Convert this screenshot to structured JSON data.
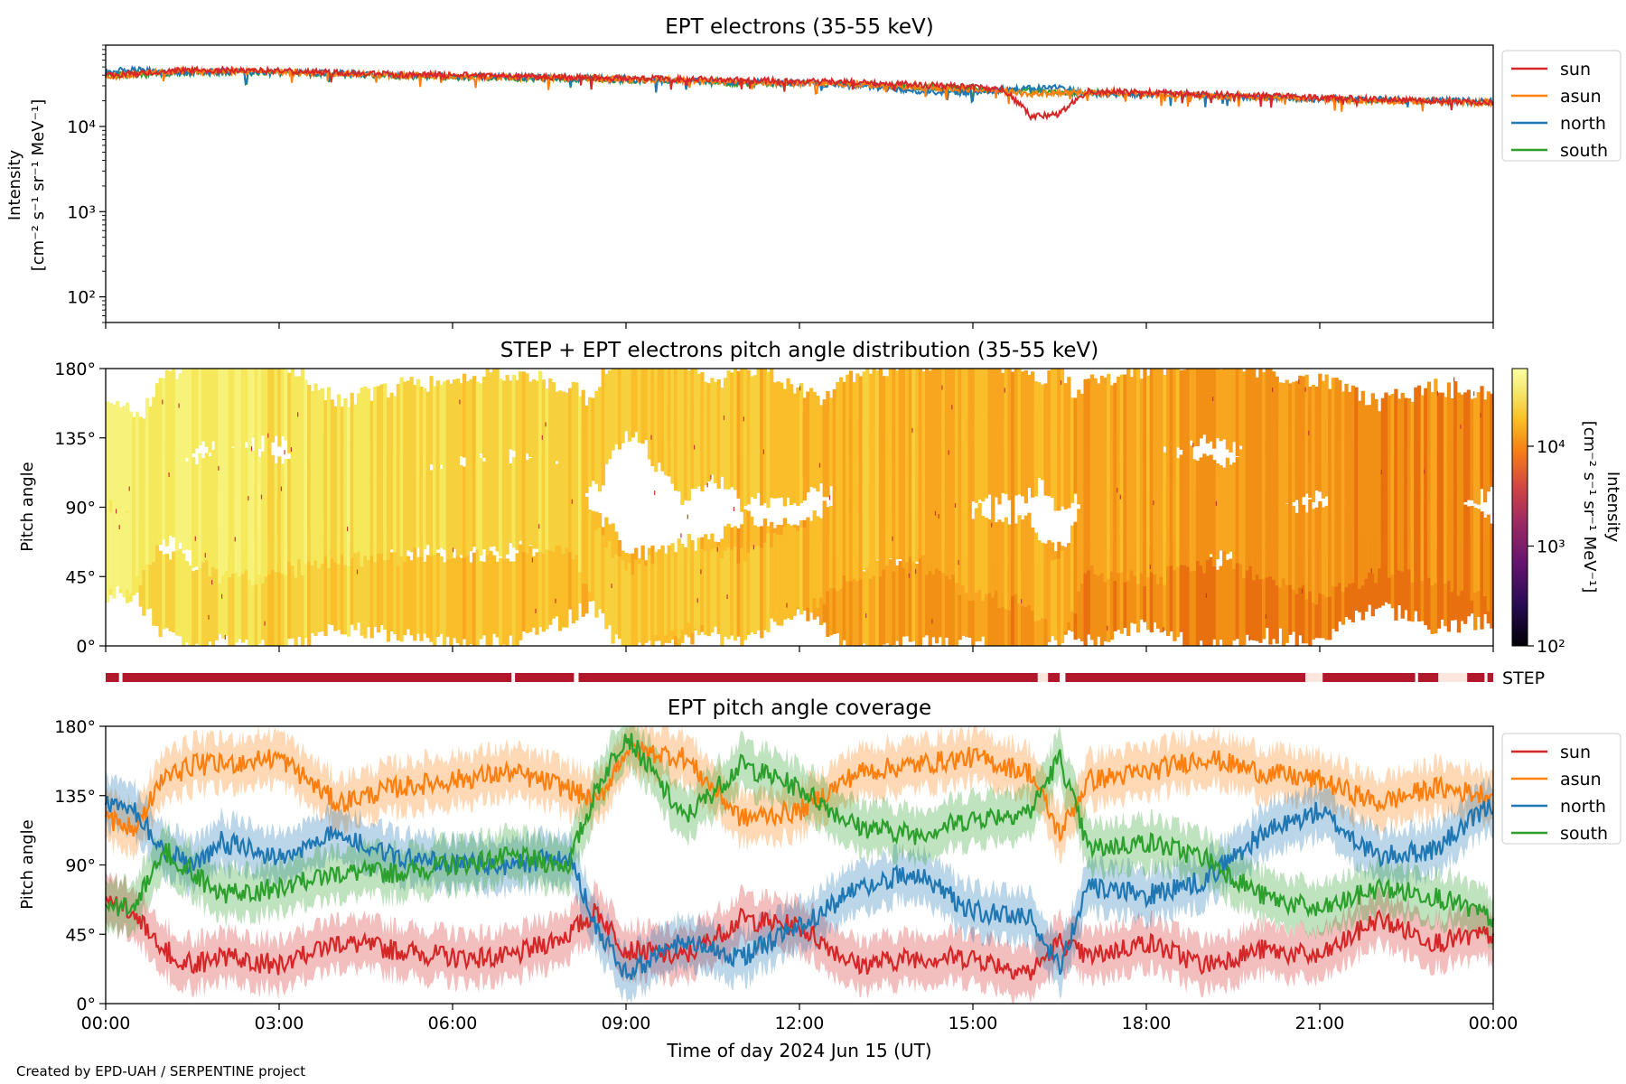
{
  "credit": "Created by EPD-UAH / SERPENTINE project",
  "colors": {
    "sun": "#d62728",
    "asun": "#ff7f0e",
    "north": "#1f77b4",
    "south": "#2ca02c",
    "step_bar": "#b2182b",
    "step_gap": "#fbe7dd"
  },
  "x_axis": {
    "label": "Time of day 2024 Jun 15 (UT)",
    "ticks": [
      {
        "h": 0,
        "label": "00:00"
      },
      {
        "h": 3,
        "label": "03:00"
      },
      {
        "h": 6,
        "label": "06:00"
      },
      {
        "h": 9,
        "label": "09:00"
      },
      {
        "h": 12,
        "label": "12:00"
      },
      {
        "h": 15,
        "label": "15:00"
      },
      {
        "h": 18,
        "label": "18:00"
      },
      {
        "h": 21,
        "label": "21:00"
      },
      {
        "h": 24,
        "label": "00:00"
      }
    ]
  },
  "chart_data": [
    {
      "type": "line",
      "title": "EPT electrons (35-55 keV)",
      "ylabel_line1": "Intensity",
      "ylabel_line2": "[cm⁻² s⁻¹ sr⁻¹ MeV⁻¹]",
      "yscale": "log",
      "ylim": [
        50,
        90000
      ],
      "xlim_hours": [
        0,
        24
      ],
      "yticks": [
        {
          "v": 100,
          "label": "10²"
        },
        {
          "v": 1000,
          "label": "10³"
        },
        {
          "v": 10000,
          "label": "10⁴"
        }
      ],
      "legend_position": "right",
      "legend": [
        "sun",
        "asun",
        "north",
        "south"
      ],
      "x": [
        0,
        0.5,
        1,
        2,
        3,
        4,
        5,
        6,
        7,
        8,
        9,
        10,
        11,
        12,
        13,
        14,
        15,
        15.5,
        16,
        16.5,
        17,
        18,
        19,
        20,
        21,
        22,
        23,
        24
      ],
      "series": [
        {
          "name": "sun",
          "values": [
            40000,
            42000,
            45000,
            46000,
            45000,
            43000,
            41000,
            40000,
            39000,
            38000,
            37000,
            36000,
            35000,
            34000,
            33000,
            31000,
            29000,
            27000,
            13000,
            14000,
            26000,
            25000,
            24000,
            23000,
            22000,
            21000,
            20000,
            19000
          ]
        },
        {
          "name": "asun",
          "values": [
            39000,
            41000,
            44000,
            45000,
            44000,
            42000,
            40000,
            39000,
            38000,
            37000,
            36000,
            35000,
            33000,
            32000,
            31000,
            29000,
            27000,
            26000,
            24000,
            25000,
            25000,
            24000,
            23000,
            22000,
            21000,
            20000,
            19500,
            19000
          ]
        },
        {
          "name": "north",
          "values": [
            44000,
            47000,
            43000,
            44000,
            43000,
            42000,
            40000,
            39000,
            38000,
            37000,
            36000,
            34000,
            34000,
            32000,
            30000,
            26000,
            25000,
            27000,
            28000,
            29000,
            24000,
            24000,
            23000,
            22000,
            21000,
            21000,
            20000,
            20000
          ]
        },
        {
          "name": "south",
          "values": [
            41000,
            40000,
            42000,
            43000,
            42000,
            41000,
            39000,
            38000,
            37000,
            36000,
            35000,
            34000,
            32000,
            32000,
            31000,
            29000,
            28000,
            27000,
            26000,
            25000,
            25000,
            24000,
            23000,
            22000,
            21000,
            20500,
            20000,
            19500
          ]
        }
      ]
    },
    {
      "type": "heatmap",
      "title": "STEP + EPT electrons pitch angle distribution (35-55 keV)",
      "ylabel": "Pitch angle",
      "ylim": [
        0,
        180
      ],
      "xlim_hours": [
        0,
        24
      ],
      "yticks": [
        {
          "v": 0,
          "label": "0°"
        },
        {
          "v": 45,
          "label": "45°"
        },
        {
          "v": 90,
          "label": "90°"
        },
        {
          "v": 135,
          "label": "135°"
        },
        {
          "v": 180,
          "label": "180°"
        }
      ],
      "colorbar": {
        "label_line1": "Intensity",
        "label_line2": "[cm⁻² s⁻¹ sr⁻¹ MeV⁻¹]",
        "scale": "log",
        "range": [
          100,
          60000
        ],
        "ticks": [
          {
            "v": 100,
            "label": "10²"
          },
          {
            "v": 1000,
            "label": "10³"
          },
          {
            "v": 10000,
            "label": "10⁴"
          }
        ]
      },
      "step_label": "STEP",
      "step_gaps_hours": [
        [
          0.23,
          0.29
        ],
        [
          7.02,
          7.08
        ],
        [
          8.1,
          8.18
        ],
        [
          16.12,
          16.3
        ],
        [
          16.5,
          16.6
        ],
        [
          20.75,
          21.05
        ],
        [
          22.65,
          22.7
        ],
        [
          23.05,
          23.55
        ],
        [
          23.85,
          23.9
        ]
      ]
    },
    {
      "type": "line",
      "title": "EPT pitch angle coverage",
      "ylabel": "Pitch angle",
      "ylim": [
        0,
        180
      ],
      "xlim_hours": [
        0,
        24
      ],
      "yticks": [
        {
          "v": 0,
          "label": "0°"
        },
        {
          "v": 45,
          "label": "45°"
        },
        {
          "v": 90,
          "label": "90°"
        },
        {
          "v": 135,
          "label": "135°"
        },
        {
          "v": 180,
          "label": "180°"
        }
      ],
      "legend_position": "right",
      "legend": [
        "sun",
        "asun",
        "north",
        "south"
      ],
      "x": [
        0,
        0.5,
        1,
        1.5,
        2,
        3,
        4,
        5,
        6,
        7,
        8,
        8.5,
        9,
        10,
        11,
        12,
        13,
        14,
        15,
        16,
        16.5,
        17,
        18,
        19,
        20,
        21,
        22,
        23,
        24
      ],
      "series": [
        {
          "name": "sun",
          "values": [
            65,
            60,
            35,
            25,
            30,
            25,
            40,
            35,
            30,
            30,
            45,
            60,
            35,
            30,
            55,
            50,
            25,
            30,
            30,
            20,
            40,
            30,
            40,
            25,
            35,
            30,
            55,
            40,
            45
          ]
        },
        {
          "name": "asun",
          "values": [
            120,
            115,
            145,
            155,
            155,
            160,
            130,
            140,
            145,
            150,
            140,
            130,
            165,
            160,
            120,
            125,
            150,
            155,
            160,
            150,
            110,
            145,
            150,
            160,
            150,
            145,
            130,
            140,
            135
          ]
        },
        {
          "name": "north",
          "values": [
            130,
            125,
            100,
            90,
            105,
            95,
            110,
            95,
            90,
            90,
            95,
            50,
            20,
            40,
            30,
            50,
            75,
            85,
            60,
            55,
            25,
            75,
            70,
            80,
            110,
            125,
            95,
            100,
            130
          ]
        },
        {
          "name": "south",
          "values": [
            60,
            65,
            100,
            85,
            70,
            75,
            85,
            85,
            90,
            95,
            90,
            140,
            175,
            120,
            155,
            140,
            115,
            110,
            120,
            125,
            160,
            100,
            105,
            95,
            70,
            60,
            75,
            70,
            55
          ]
        }
      ]
    }
  ]
}
